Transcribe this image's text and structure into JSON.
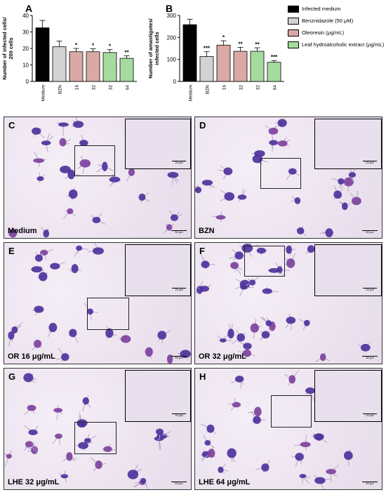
{
  "panel_letters": {
    "a": "A",
    "b": "B"
  },
  "legend": [
    {
      "label": "Infected medium",
      "color": "#000000"
    },
    {
      "label": "Benznidazole (50 μM)",
      "color": "#d3d3d3"
    },
    {
      "label": "Oleoresin (μg/mL)",
      "color": "#d9a9a6"
    },
    {
      "label": "Leaf hydroalcoholic extract (μg/mL)",
      "color": "#a6dba0"
    }
  ],
  "chart_data": [
    {
      "type": "bar",
      "ylabel": "Number of infected cells/ 200 cells",
      "categories": [
        "Medium",
        "BZN",
        "16",
        "32",
        "32",
        "64"
      ],
      "values": [
        32.5,
        21,
        18,
        18,
        17.5,
        14
      ],
      "errors": [
        4.5,
        3.5,
        2,
        1.8,
        1.8,
        1.5
      ],
      "colors": [
        "#000000",
        "#d3d3d3",
        "#d9a9a6",
        "#d9a9a6",
        "#a6dba0",
        "#a6dba0"
      ],
      "significance": [
        "",
        "",
        "*",
        "*",
        "*",
        "**"
      ],
      "ylim": [
        0,
        40
      ],
      "yticks": [
        0,
        10,
        20,
        30,
        40
      ]
    },
    {
      "type": "bar",
      "ylabel": "Number of amastigotes/ infected cells",
      "categories": [
        "Medium",
        "BZN",
        "16",
        "32",
        "32",
        "64"
      ],
      "values": [
        258,
        113,
        165,
        137,
        137,
        87
      ],
      "errors": [
        25,
        22,
        20,
        18,
        16,
        8
      ],
      "colors": [
        "#000000",
        "#d3d3d3",
        "#d9a9a6",
        "#d9a9a6",
        "#a6dba0",
        "#a6dba0"
      ],
      "significance": [
        "",
        "***",
        "*",
        "**",
        "**",
        "***"
      ],
      "ylim": [
        0,
        300
      ],
      "yticks": [
        0,
        100,
        200,
        300
      ]
    }
  ],
  "micro": {
    "c": {
      "letter": "C",
      "caption": "Medium"
    },
    "d": {
      "letter": "D",
      "caption": "BZN"
    },
    "e": {
      "letter": "E",
      "caption": "OR 16 μg/mL"
    },
    "f": {
      "letter": "F",
      "caption": "OR 32 μg/mL"
    },
    "g": {
      "letter": "G",
      "caption": "LHE 32 μg/mL"
    },
    "h": {
      "letter": "H",
      "caption": "LHE 64 μg/mL"
    },
    "scale_inset": "20 μM",
    "scale_main": "50 μm"
  }
}
